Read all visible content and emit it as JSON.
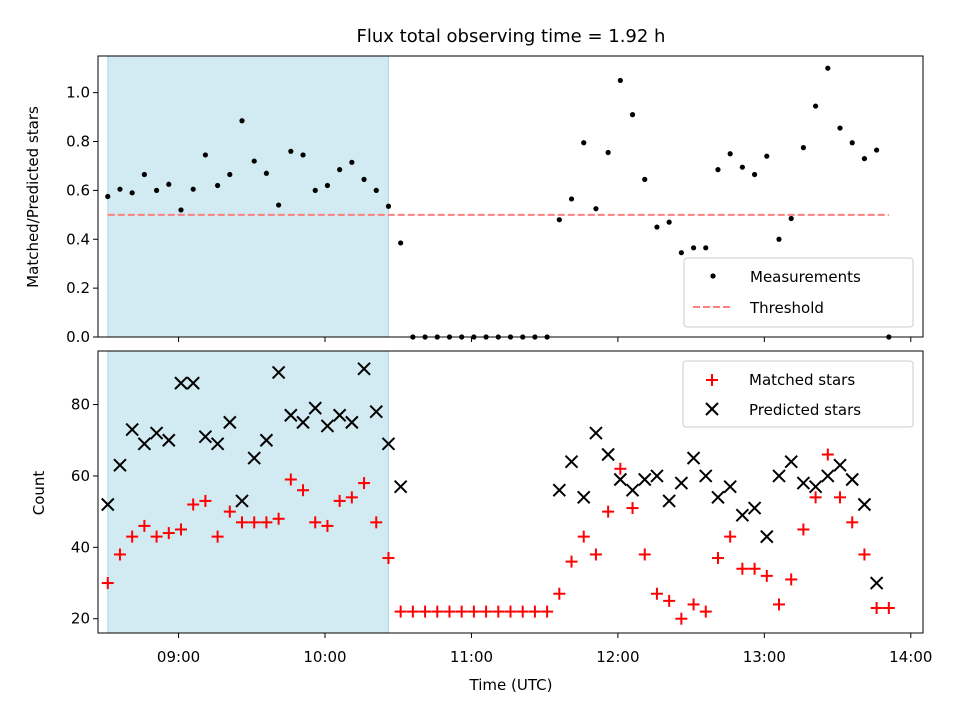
{
  "colors": {
    "shade": "#add8e6",
    "measure": "#000000",
    "threshold": "#ff7f7f",
    "matched": "#ff0000",
    "predicted": "#000000"
  },
  "chart_data": [
    {
      "type": "scatter",
      "title": "Flux total observing time = 1.92 h",
      "xlabel": "",
      "ylabel": "Matched/Predicted stars",
      "xlim": [
        "08:27",
        "14:05"
      ],
      "ylim": [
        0.0,
        1.15
      ],
      "yticks": [
        "0.0",
        "0.2",
        "0.4",
        "0.6",
        "0.8",
        "1.0"
      ],
      "shaded_interval": [
        "08:31",
        "10:26"
      ],
      "legend_position": "lower right",
      "legend": [
        "Measurements",
        "Threshold"
      ],
      "series": [
        {
          "name": "Measurements",
          "marker": "dot",
          "points": [
            [
              "08:31",
              0.575
            ],
            [
              "08:36",
              0.605
            ],
            [
              "08:41",
              0.59
            ],
            [
              "08:46",
              0.665
            ],
            [
              "08:51",
              0.6
            ],
            [
              "08:56",
              0.625
            ],
            [
              "09:01",
              0.52
            ],
            [
              "09:06",
              0.605
            ],
            [
              "09:11",
              0.745
            ],
            [
              "09:16",
              0.62
            ],
            [
              "09:21",
              0.665
            ],
            [
              "09:26",
              0.885
            ],
            [
              "09:31",
              0.72
            ],
            [
              "09:36",
              0.67
            ],
            [
              "09:41",
              0.54
            ],
            [
              "09:46",
              0.76
            ],
            [
              "09:51",
              0.745
            ],
            [
              "09:56",
              0.6
            ],
            [
              "10:01",
              0.62
            ],
            [
              "10:06",
              0.685
            ],
            [
              "10:11",
              0.715
            ],
            [
              "10:16",
              0.645
            ],
            [
              "10:21",
              0.6
            ],
            [
              "10:26",
              0.535
            ],
            [
              "10:31",
              0.385
            ],
            [
              "10:36",
              0.0
            ],
            [
              "10:41",
              0.0
            ],
            [
              "10:46",
              0.0
            ],
            [
              "10:51",
              0.0
            ],
            [
              "10:56",
              0.0
            ],
            [
              "11:01",
              0.0
            ],
            [
              "11:06",
              0.0
            ],
            [
              "11:11",
              0.0
            ],
            [
              "11:16",
              0.0
            ],
            [
              "11:21",
              0.0
            ],
            [
              "11:26",
              0.0
            ],
            [
              "11:31",
              0.0
            ],
            [
              "11:36",
              0.48
            ],
            [
              "11:41",
              0.565
            ],
            [
              "11:46",
              0.795
            ],
            [
              "11:51",
              0.525
            ],
            [
              "11:56",
              0.755
            ],
            [
              "12:01",
              1.05
            ],
            [
              "12:06",
              0.91
            ],
            [
              "12:11",
              0.645
            ],
            [
              "12:16",
              0.45
            ],
            [
              "12:21",
              0.47
            ],
            [
              "12:26",
              0.345
            ],
            [
              "12:31",
              0.365
            ],
            [
              "12:36",
              0.365
            ],
            [
              "12:41",
              0.685
            ],
            [
              "12:46",
              0.75
            ],
            [
              "12:51",
              0.695
            ],
            [
              "12:56",
              0.665
            ],
            [
              "13:01",
              0.74
            ],
            [
              "13:06",
              0.4
            ],
            [
              "13:11",
              0.485
            ],
            [
              "13:16",
              0.775
            ],
            [
              "13:21",
              0.945
            ],
            [
              "13:26",
              1.1
            ],
            [
              "13:31",
              0.855
            ],
            [
              "13:36",
              0.795
            ],
            [
              "13:41",
              0.73
            ],
            [
              "13:46",
              0.765
            ],
            [
              "13:51",
              0.0
            ]
          ]
        },
        {
          "name": "Threshold",
          "marker": "dashed-line",
          "points": [
            [
              "08:31",
              0.5
            ],
            [
              "13:51",
              0.5
            ]
          ]
        }
      ]
    },
    {
      "type": "scatter",
      "title": "",
      "xlabel": "Time (UTC)",
      "ylabel": "Count",
      "xlim": [
        "08:27",
        "14:05"
      ],
      "ylim": [
        16,
        95
      ],
      "xticks": [
        "09:00",
        "10:00",
        "11:00",
        "12:00",
        "13:00",
        "14:00"
      ],
      "yticks": [
        "20",
        "40",
        "60",
        "80"
      ],
      "shaded_interval": [
        "08:31",
        "10:26"
      ],
      "legend_position": "upper right",
      "legend": [
        "Matched stars",
        "Predicted stars"
      ],
      "series": [
        {
          "name": "Matched stars",
          "marker": "plus",
          "points": [
            [
              "08:31",
              30
            ],
            [
              "08:36",
              38
            ],
            [
              "08:41",
              43
            ],
            [
              "08:46",
              46
            ],
            [
              "08:51",
              43
            ],
            [
              "08:56",
              44
            ],
            [
              "09:01",
              45
            ],
            [
              "09:06",
              52
            ],
            [
              "09:11",
              53
            ],
            [
              "09:16",
              43
            ],
            [
              "09:21",
              50
            ],
            [
              "09:26",
              47
            ],
            [
              "09:31",
              47
            ],
            [
              "09:36",
              47
            ],
            [
              "09:41",
              48
            ],
            [
              "09:46",
              59
            ],
            [
              "09:51",
              56
            ],
            [
              "09:56",
              47
            ],
            [
              "10:01",
              46
            ],
            [
              "10:06",
              53
            ],
            [
              "10:11",
              54
            ],
            [
              "10:16",
              58
            ],
            [
              "10:21",
              47
            ],
            [
              "10:26",
              37
            ],
            [
              "10:31",
              22
            ],
            [
              "10:36",
              22
            ],
            [
              "10:41",
              22
            ],
            [
              "10:46",
              22
            ],
            [
              "10:51",
              22
            ],
            [
              "10:56",
              22
            ],
            [
              "11:01",
              22
            ],
            [
              "11:06",
              22
            ],
            [
              "11:11",
              22
            ],
            [
              "11:16",
              22
            ],
            [
              "11:21",
              22
            ],
            [
              "11:26",
              22
            ],
            [
              "11:31",
              22
            ],
            [
              "11:36",
              27
            ],
            [
              "11:41",
              36
            ],
            [
              "11:46",
              43
            ],
            [
              "11:51",
              38
            ],
            [
              "11:56",
              50
            ],
            [
              "12:01",
              62
            ],
            [
              "12:06",
              51
            ],
            [
              "12:11",
              38
            ],
            [
              "12:16",
              27
            ],
            [
              "12:21",
              25
            ],
            [
              "12:26",
              20
            ],
            [
              "12:31",
              24
            ],
            [
              "12:36",
              22
            ],
            [
              "12:41",
              37
            ],
            [
              "12:46",
              43
            ],
            [
              "12:51",
              34
            ],
            [
              "12:56",
              34
            ],
            [
              "13:01",
              32
            ],
            [
              "13:06",
              24
            ],
            [
              "13:11",
              31
            ],
            [
              "13:16",
              45
            ],
            [
              "13:21",
              54
            ],
            [
              "13:26",
              66
            ],
            [
              "13:31",
              54
            ],
            [
              "13:36",
              47
            ],
            [
              "13:41",
              38
            ],
            [
              "13:46",
              23
            ],
            [
              "13:51",
              23
            ]
          ]
        },
        {
          "name": "Predicted stars",
          "marker": "x",
          "points": [
            [
              "08:31",
              52
            ],
            [
              "08:36",
              63
            ],
            [
              "08:41",
              73
            ],
            [
              "08:46",
              69
            ],
            [
              "08:51",
              72
            ],
            [
              "08:56",
              70
            ],
            [
              "09:01",
              86
            ],
            [
              "09:06",
              86
            ],
            [
              "09:11",
              71
            ],
            [
              "09:16",
              69
            ],
            [
              "09:21",
              75
            ],
            [
              "09:26",
              53
            ],
            [
              "09:31",
              65
            ],
            [
              "09:36",
              70
            ],
            [
              "09:41",
              89
            ],
            [
              "09:46",
              77
            ],
            [
              "09:51",
              75
            ],
            [
              "09:56",
              79
            ],
            [
              "10:01",
              74
            ],
            [
              "10:06",
              77
            ],
            [
              "10:11",
              75
            ],
            [
              "10:16",
              90
            ],
            [
              "10:21",
              78
            ],
            [
              "10:26",
              69
            ],
            [
              "10:31",
              57
            ],
            [
              "11:36",
              56
            ],
            [
              "11:41",
              64
            ],
            [
              "11:46",
              54
            ],
            [
              "11:51",
              72
            ],
            [
              "11:56",
              66
            ],
            [
              "12:01",
              59
            ],
            [
              "12:06",
              56
            ],
            [
              "12:11",
              59
            ],
            [
              "12:16",
              60
            ],
            [
              "12:21",
              53
            ],
            [
              "12:26",
              58
            ],
            [
              "12:31",
              65
            ],
            [
              "12:36",
              60
            ],
            [
              "12:41",
              54
            ],
            [
              "12:46",
              57
            ],
            [
              "12:51",
              49
            ],
            [
              "12:56",
              51
            ],
            [
              "13:01",
              43
            ],
            [
              "13:06",
              60
            ],
            [
              "13:11",
              64
            ],
            [
              "13:16",
              58
            ],
            [
              "13:21",
              57
            ],
            [
              "13:26",
              60
            ],
            [
              "13:31",
              63
            ],
            [
              "13:36",
              59
            ],
            [
              "13:41",
              52
            ],
            [
              "13:46",
              30
            ]
          ]
        }
      ]
    }
  ]
}
